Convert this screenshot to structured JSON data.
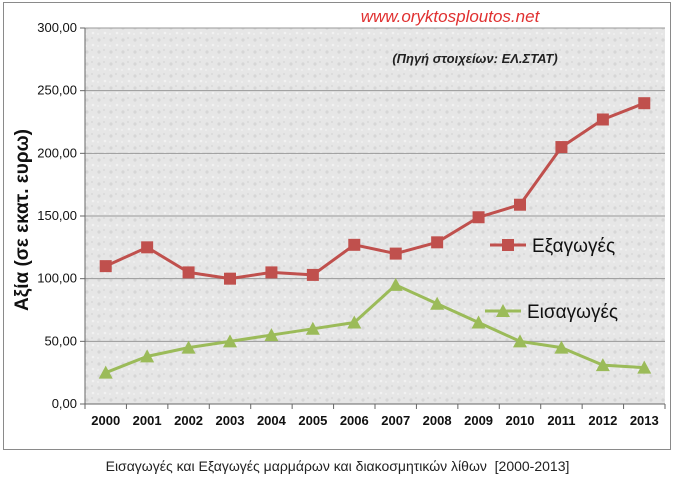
{
  "watermark": "www.oryktosploutos.net",
  "source_note": "(Πηγή στοιχείων: ΕΛ.ΣΤΑΤ)",
  "caption": "Εισαγωγές και Εξαγωγές μαρμάρων και διακοσμητικών λίθων  [2000-2013]",
  "colors": {
    "exports": "#c0504d",
    "imports": "#9bbb59",
    "watermark": "#e03030",
    "plot_background": "#e6e6e6",
    "gridline": "#999999"
  },
  "chart_data": {
    "type": "line",
    "title": "",
    "xlabel": "",
    "ylabel": "Αξία (σε εκατ. ευρω)",
    "x": [
      "2000",
      "2001",
      "2002",
      "2003",
      "2004",
      "2005",
      "2006",
      "2007",
      "2008",
      "2009",
      "2010",
      "2011",
      "2012",
      "2013"
    ],
    "ylim": [
      0,
      300
    ],
    "yticks": [
      "0,00",
      "50,00",
      "100,00",
      "150,00",
      "200,00",
      "250,00",
      "300,00"
    ],
    "grid": true,
    "legend_placement": "right",
    "series": [
      {
        "name": "Εξαγωγές",
        "marker": "square",
        "color": "#c0504d",
        "values": [
          110,
          125,
          105,
          100,
          105,
          103,
          127,
          120,
          129,
          149,
          159,
          205,
          227,
          240
        ]
      },
      {
        "name": "Εισαγωγές",
        "marker": "triangle",
        "color": "#9bbb59",
        "values": [
          25,
          38,
          45,
          50,
          55,
          60,
          65,
          95,
          80,
          65,
          50,
          45,
          31,
          29
        ]
      }
    ]
  }
}
